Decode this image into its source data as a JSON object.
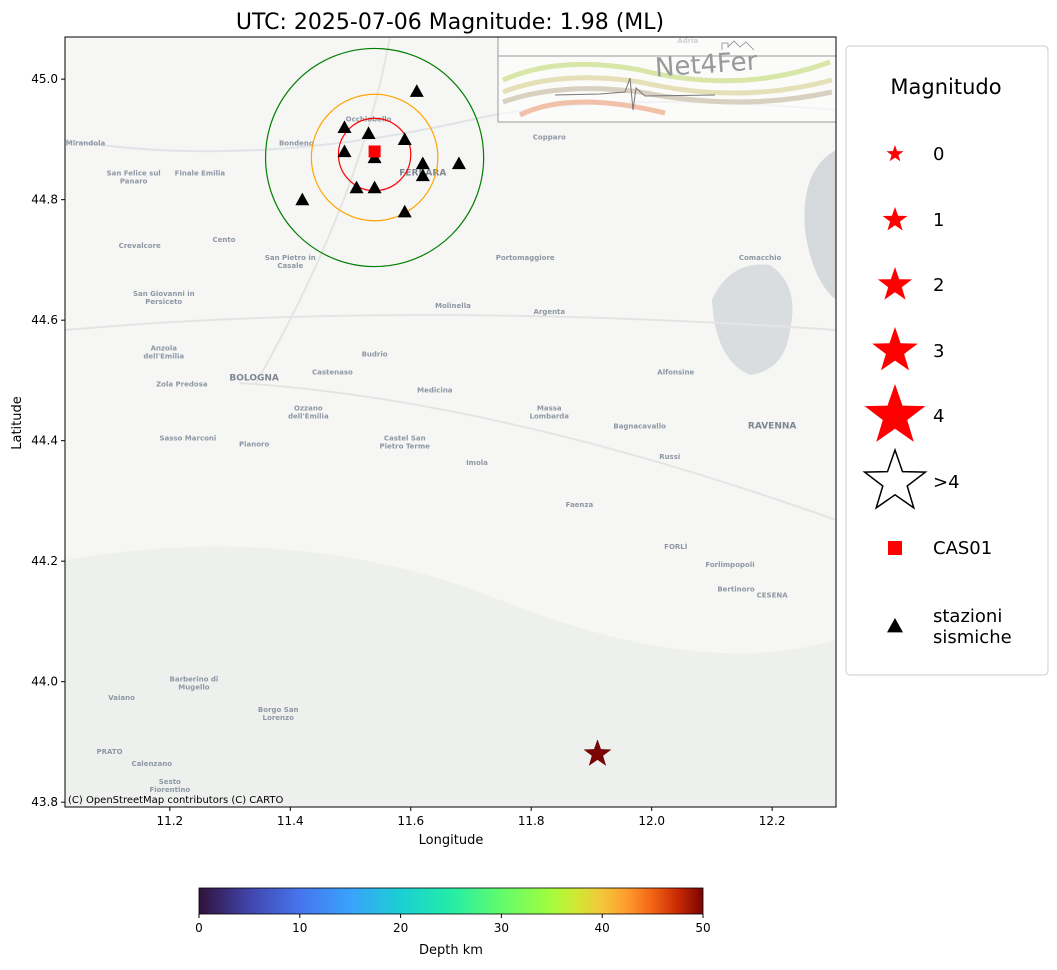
{
  "title": "UTC: 2025-07-06 Magnitude: 1.98 (ML)",
  "attribution": "(C) OpenStreetMap contributors (C) CARTO",
  "logo_text": "Net4Fer",
  "chart_data": {
    "type": "scatter",
    "xlabel": "Longitude",
    "ylabel": "Latitude",
    "xlim": [
      11.026,
      12.306
    ],
    "ylim": [
      43.792,
      45.07
    ],
    "xticks": [
      11.2,
      11.4,
      11.6,
      11.8,
      12.0,
      12.2
    ],
    "xtick_labels": [
      "11.2",
      "11.4",
      "11.6",
      "11.8",
      "12.0",
      "12.2"
    ],
    "yticks": [
      43.8,
      44.0,
      44.2,
      44.4,
      44.6,
      44.8,
      45.0
    ],
    "ytick_labels": [
      "43.8",
      "44.0",
      "44.2",
      "44.4",
      "44.6",
      "44.8",
      "45.0"
    ],
    "grid": false,
    "event": {
      "lon": 11.91,
      "lat": 43.88,
      "magnitude": 1.98,
      "depth_km": 50,
      "marker": "star"
    },
    "reference_station": {
      "name": "CAS01",
      "lon": 11.54,
      "lat": 44.88,
      "color": "#ff0000",
      "marker": "square"
    },
    "circles": [
      {
        "lon": 11.54,
        "lat": 44.875,
        "radius_deg": 0.06,
        "color": "#ff0000"
      },
      {
        "lon": 11.54,
        "lat": 44.87,
        "radius_deg": 0.105,
        "color": "#ffa500"
      },
      {
        "lon": 11.54,
        "lat": 44.87,
        "radius_deg": 0.181,
        "color": "#008000"
      }
    ],
    "stations": [
      {
        "lon": 11.61,
        "lat": 44.98
      },
      {
        "lon": 11.49,
        "lat": 44.92
      },
      {
        "lon": 11.53,
        "lat": 44.91
      },
      {
        "lon": 11.59,
        "lat": 44.9
      },
      {
        "lon": 11.49,
        "lat": 44.88
      },
      {
        "lon": 11.54,
        "lat": 44.87
      },
      {
        "lon": 11.62,
        "lat": 44.86
      },
      {
        "lon": 11.68,
        "lat": 44.86
      },
      {
        "lon": 11.62,
        "lat": 44.84
      },
      {
        "lon": 11.51,
        "lat": 44.82
      },
      {
        "lon": 11.54,
        "lat": 44.82
      },
      {
        "lon": 11.42,
        "lat": 44.8
      },
      {
        "lon": 11.59,
        "lat": 44.78
      }
    ],
    "colorbar": {
      "label": "Depth km",
      "min": 0,
      "max": 50,
      "ticks": [
        "0",
        "10",
        "20",
        "30",
        "40",
        "50"
      ],
      "colormap": "turbo"
    },
    "legend": {
      "title": "Magnitudo",
      "position": "right-outside",
      "items": [
        {
          "label": "0",
          "marker": "star",
          "color": "#ff0000",
          "size": 9
        },
        {
          "label": "1",
          "marker": "star",
          "color": "#ff0000",
          "size": 13
        },
        {
          "label": "2",
          "marker": "star",
          "color": "#ff0000",
          "size": 18
        },
        {
          "label": "3",
          "marker": "star",
          "color": "#ff0000",
          "size": 24
        },
        {
          "label": "4",
          "marker": "star",
          "color": "#ff0000",
          "size": 32
        },
        {
          "label": ">4",
          "marker": "star-outline",
          "color": "#000000",
          "size": 32
        },
        {
          "label": "CAS01",
          "marker": "square",
          "color": "#ff0000",
          "size": 7
        },
        {
          "label": "stazioni\nsismiche",
          "marker": "triangle",
          "color": "#000000",
          "size": 8
        }
      ]
    }
  },
  "map_labels": [
    {
      "t": "Mirandola",
      "lon": 11.06,
      "lat": 44.89
    },
    {
      "t": "San Felice sul\nPanaro",
      "lon": 11.14,
      "lat": 44.84
    },
    {
      "t": "Finale Emilia",
      "lon": 11.25,
      "lat": 44.84
    },
    {
      "t": "Bondeno",
      "lon": 11.41,
      "lat": 44.89
    },
    {
      "t": "Occhiobello",
      "lon": 11.53,
      "lat": 44.93
    },
    {
      "t": "FERRARA",
      "lon": 11.62,
      "lat": 44.84,
      "big": true
    },
    {
      "t": "Copparo",
      "lon": 11.83,
      "lat": 44.9
    },
    {
      "t": "Crevalcore",
      "lon": 11.15,
      "lat": 44.72
    },
    {
      "t": "Cento",
      "lon": 11.29,
      "lat": 44.73
    },
    {
      "t": "San Pietro in\nCasale",
      "lon": 11.4,
      "lat": 44.7
    },
    {
      "t": "Portomaggiore",
      "lon": 11.79,
      "lat": 44.7
    },
    {
      "t": "Comacchio",
      "lon": 12.18,
      "lat": 44.7
    },
    {
      "t": "San Giovanni in\nPersiceto",
      "lon": 11.19,
      "lat": 44.64
    },
    {
      "t": "Molinella",
      "lon": 11.67,
      "lat": 44.62
    },
    {
      "t": "Argenta",
      "lon": 11.83,
      "lat": 44.61
    },
    {
      "t": "Anzola\ndell'Emilia",
      "lon": 11.19,
      "lat": 44.55
    },
    {
      "t": "Budrio",
      "lon": 11.54,
      "lat": 44.54
    },
    {
      "t": "Zola Predosa",
      "lon": 11.22,
      "lat": 44.49
    },
    {
      "t": "BOLOGNA",
      "lon": 11.34,
      "lat": 44.5,
      "big": true
    },
    {
      "t": "Castenaso",
      "lon": 11.47,
      "lat": 44.51
    },
    {
      "t": "Ozzano\ndell'Emilia",
      "lon": 11.43,
      "lat": 44.45
    },
    {
      "t": "Medicina",
      "lon": 11.64,
      "lat": 44.48
    },
    {
      "t": "Massa\nLombarda",
      "lon": 11.83,
      "lat": 44.45
    },
    {
      "t": "Alfonsine",
      "lon": 12.04,
      "lat": 44.51
    },
    {
      "t": "Sasso Marconi",
      "lon": 11.23,
      "lat": 44.4
    },
    {
      "t": "Pianoro",
      "lon": 11.34,
      "lat": 44.39
    },
    {
      "t": "Castel San\nPietro Terme",
      "lon": 11.59,
      "lat": 44.4
    },
    {
      "t": "Bagnacavallo",
      "lon": 11.98,
      "lat": 44.42
    },
    {
      "t": "RAVENNA",
      "lon": 12.2,
      "lat": 44.42,
      "big": true
    },
    {
      "t": "Russi",
      "lon": 12.03,
      "lat": 44.37
    },
    {
      "t": "Imola",
      "lon": 11.71,
      "lat": 44.36
    },
    {
      "t": "Faenza",
      "lon": 11.88,
      "lat": 44.29
    },
    {
      "t": "FORLÌ",
      "lon": 12.04,
      "lat": 44.22
    },
    {
      "t": "Forlimpopoli",
      "lon": 12.13,
      "lat": 44.19
    },
    {
      "t": "Bertinoro",
      "lon": 12.14,
      "lat": 44.15
    },
    {
      "t": "CESENA",
      "lon": 12.2,
      "lat": 44.14
    },
    {
      "t": "Barberino di\nMugello",
      "lon": 11.24,
      "lat": 44.0
    },
    {
      "t": "Vaiano",
      "lon": 11.12,
      "lat": 43.97
    },
    {
      "t": "Borgo San\nLorenzo",
      "lon": 11.38,
      "lat": 43.95
    },
    {
      "t": "PRATO",
      "lon": 11.1,
      "lat": 43.88
    },
    {
      "t": "Calenzano",
      "lon": 11.17,
      "lat": 43.86
    },
    {
      "t": "Sesto\nFiorentino",
      "lon": 11.2,
      "lat": 43.83
    },
    {
      "t": "Adria",
      "lon": 12.06,
      "lat": 45.06
    }
  ]
}
